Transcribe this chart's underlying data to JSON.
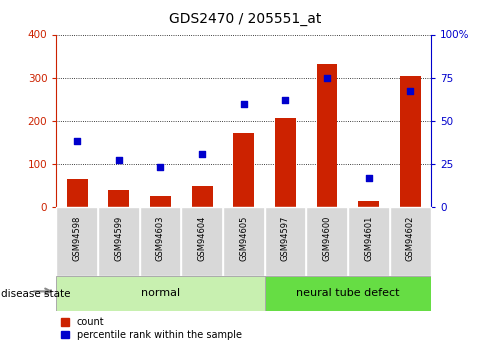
{
  "title": "GDS2470 / 205551_at",
  "categories": [
    "GSM94598",
    "GSM94599",
    "GSM94603",
    "GSM94604",
    "GSM94605",
    "GSM94597",
    "GSM94600",
    "GSM94601",
    "GSM94602"
  ],
  "count_values": [
    65,
    40,
    25,
    48,
    172,
    207,
    332,
    15,
    304
  ],
  "percentile_values": [
    38,
    27,
    23,
    31,
    60,
    62,
    75,
    17,
    67
  ],
  "normal_indices": [
    0,
    1,
    2,
    3,
    4
  ],
  "disease_indices": [
    5,
    6,
    7,
    8
  ],
  "bar_color": "#cc2200",
  "dot_color": "#0000cc",
  "normal_bg": "#c8f0b0",
  "disease_bg": "#66dd44",
  "tick_bg": "#d8d8d8",
  "left_axis_color": "#cc2200",
  "right_axis_color": "#0000cc",
  "ylim_left": [
    0,
    400
  ],
  "ylim_right": [
    0,
    100
  ],
  "left_ticks": [
    0,
    100,
    200,
    300,
    400
  ],
  "right_ticks": [
    0,
    25,
    50,
    75,
    100
  ],
  "right_tick_labels": [
    "0",
    "25",
    "50",
    "75",
    "100%"
  ],
  "grid_color": "#000000",
  "legend_count_label": "count",
  "legend_pct_label": "percentile rank within the sample",
  "normal_label": "normal",
  "disease_label": "neural tube defect",
  "disease_state_label": "disease state",
  "bar_width": 0.5
}
